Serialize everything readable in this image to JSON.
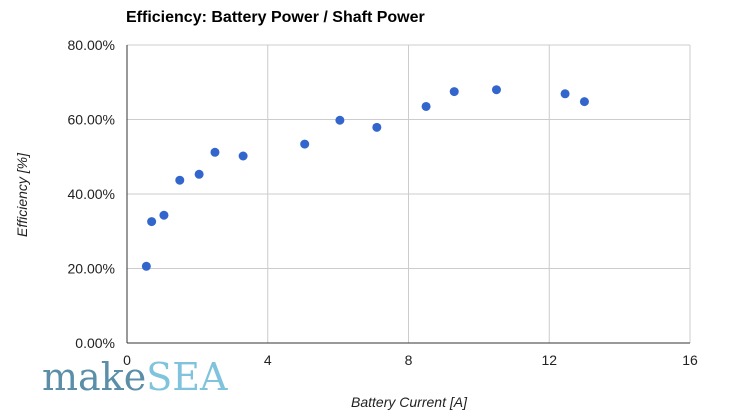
{
  "chart_data": {
    "type": "scatter",
    "title": "Efficiency: Battery Power / Shaft Power",
    "xlabel": "Battery Current [A]",
    "ylabel": "Efficiency [%]",
    "xlim": [
      0,
      16
    ],
    "ylim": [
      0,
      80
    ],
    "x_ticks": [
      0,
      4,
      8,
      12,
      16
    ],
    "x_tick_labels": [
      "0",
      "4",
      "8",
      "12",
      "16"
    ],
    "y_ticks": [
      0,
      20,
      40,
      60,
      80
    ],
    "y_tick_labels": [
      "0.00%",
      "20.00%",
      "40.00%",
      "60.00%",
      "80.00%"
    ],
    "grid": true,
    "legend": "none",
    "point_color": "#3366cc",
    "points": [
      {
        "x": 0.55,
        "y": 20.6
      },
      {
        "x": 0.7,
        "y": 32.6
      },
      {
        "x": 1.05,
        "y": 34.3
      },
      {
        "x": 1.5,
        "y": 43.7
      },
      {
        "x": 2.05,
        "y": 45.3
      },
      {
        "x": 2.5,
        "y": 51.2
      },
      {
        "x": 3.3,
        "y": 50.2
      },
      {
        "x": 5.05,
        "y": 53.4
      },
      {
        "x": 6.05,
        "y": 59.8
      },
      {
        "x": 7.1,
        "y": 57.9
      },
      {
        "x": 8.5,
        "y": 63.5
      },
      {
        "x": 9.3,
        "y": 67.5
      },
      {
        "x": 10.5,
        "y": 68.0
      },
      {
        "x": 12.45,
        "y": 66.9
      },
      {
        "x": 13.0,
        "y": 64.8
      }
    ]
  },
  "logo": {
    "part1": "make",
    "part2": "SEA",
    "color1": "#5b8fa8",
    "color2": "#7fc4dc"
  }
}
